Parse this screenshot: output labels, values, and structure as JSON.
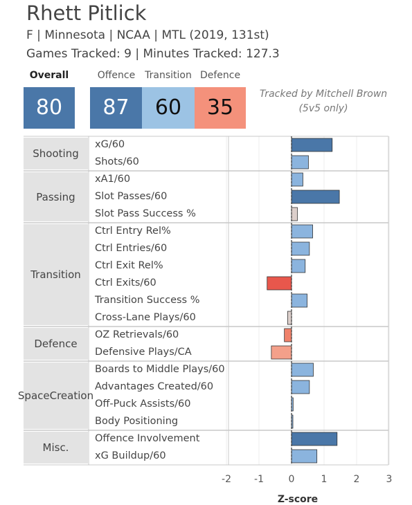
{
  "header": {
    "player_name": "Rhett Pitlick",
    "info_line": "F | Minnesota | NCAA | MTL (2019, 131st)",
    "tracked_line": "Games Tracked: 9 | Minutes Tracked: 127.3"
  },
  "scores": {
    "overall_label": "Overall",
    "overall_value": "80",
    "offence_label": "Offence",
    "offence_value": "87",
    "transition_label": "Transition",
    "transition_value": "60",
    "defence_label": "Defence",
    "defence_value": "35",
    "colors": {
      "overall": "#4a77a8",
      "offence": "#4a77a8",
      "transition": "#9cc3e4",
      "defence": "#f4917b"
    }
  },
  "note": {
    "line1": "Tracked by Mitchell Brown",
    "line2": "(5v5 only)"
  },
  "chart_data": {
    "type": "bar",
    "orientation": "horizontal",
    "xlabel": "Z-score",
    "xlim": [
      -2.5,
      3.0
    ],
    "xticks": [
      "-2",
      "-1",
      "0",
      "1",
      "2",
      "3"
    ],
    "xtick_values": [
      -2,
      -1,
      0,
      1,
      2,
      3
    ],
    "groups": [
      {
        "name": "Shooting",
        "lines": [
          "Shooting"
        ],
        "rows": [
          {
            "label": "xG/60",
            "value": 1.25,
            "color": "#4a77a8"
          },
          {
            "label": "Shots/60",
            "value": 0.52,
            "color": "#8bb4de"
          }
        ]
      },
      {
        "name": "Passing",
        "lines": [
          "Passing"
        ],
        "rows": [
          {
            "label": "xA1/60",
            "value": 0.35,
            "color": "#8bb4de"
          },
          {
            "label": "Slot Passes/60",
            "value": 1.47,
            "color": "#4a77a8"
          },
          {
            "label": "Slot Pass Success %",
            "value": 0.18,
            "color": "#dccfcb"
          }
        ]
      },
      {
        "name": "Transition",
        "lines": [
          "Transition"
        ],
        "rows": [
          {
            "label": "Ctrl Entry Rel%",
            "value": 0.65,
            "color": "#8bb4de"
          },
          {
            "label": "Ctrl Entries/60",
            "value": 0.55,
            "color": "#8bb4de"
          },
          {
            "label": "Ctrl Exit Rel%",
            "value": 0.42,
            "color": "#8bb4de"
          },
          {
            "label": "Ctrl Exits/60",
            "value": -0.75,
            "color": "#e8574c"
          },
          {
            "label": "Transition Success %",
            "value": 0.48,
            "color": "#8bb4de"
          },
          {
            "label": "Cross-Lane Plays/60",
            "value": -0.12,
            "color": "#dccfcb"
          }
        ]
      },
      {
        "name": "Defence",
        "lines": [
          "Defence"
        ],
        "rows": [
          {
            "label": "OZ Retrievals/60",
            "value": -0.22,
            "color": "#f0826b"
          },
          {
            "label": "Defensive Plays/CA",
            "value": -0.62,
            "color": "#f4a08a"
          }
        ]
      },
      {
        "name": "Space Creation",
        "lines": [
          "Space",
          "Creation"
        ],
        "rows": [
          {
            "label": "Boards to Middle Plays/60",
            "value": 0.67,
            "color": "#8bb4de"
          },
          {
            "label": "Advantages Created/60",
            "value": 0.55,
            "color": "#8bb4de"
          },
          {
            "label": "Off-Puck Assists/60",
            "value": 0.05,
            "color": "#8bb4de"
          },
          {
            "label": "Body Positioning",
            "value": 0.02,
            "color": "#8bb4de"
          }
        ]
      },
      {
        "name": "Misc.",
        "lines": [
          "Misc."
        ],
        "rows": [
          {
            "label": "Offence Involvement",
            "value": 1.4,
            "color": "#4a77a8"
          },
          {
            "label": "xG Buildup/60",
            "value": 0.78,
            "color": "#8bb4de"
          }
        ]
      }
    ]
  }
}
